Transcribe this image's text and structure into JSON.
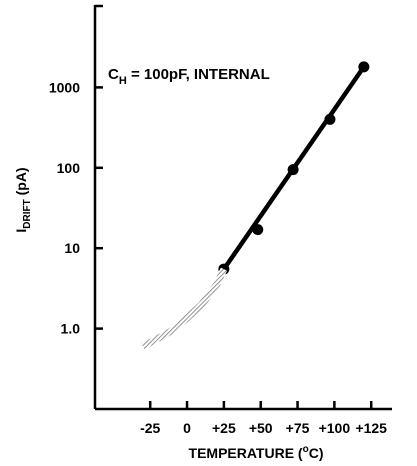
{
  "chart_data": {
    "type": "line",
    "ylabel_main": "I",
    "ylabel_sub": "DRIFT",
    "ylabel_unit": " (pA)",
    "xlabel_main": "TEMPERATURE (",
    "xlabel_sup": "o",
    "xlabel_end": "C)",
    "annotation_main": "C",
    "annotation_sub": "H",
    "annotation_rest": " = 100pF, INTERNAL",
    "y_scale": "log",
    "ylim": [
      0.1,
      10000
    ],
    "xlim": [
      -55,
      133
    ],
    "x_ticks": [
      {
        "value": -25,
        "label": "-25"
      },
      {
        "value": 0,
        "label": "0"
      },
      {
        "value": 25,
        "label": "+25"
      },
      {
        "value": 50,
        "label": "+50"
      },
      {
        "value": 75,
        "label": "+75"
      },
      {
        "value": 100,
        "label": "+100"
      },
      {
        "value": 125,
        "label": "+125"
      }
    ],
    "y_ticks": [
      {
        "value": 1,
        "label": "1.0"
      },
      {
        "value": 10,
        "label": "10"
      },
      {
        "value": 100,
        "label": "100"
      },
      {
        "value": 1000,
        "label": "1000"
      }
    ],
    "series": [
      {
        "style": "solid",
        "color": "#000000",
        "x": [
          25,
          120
        ],
        "y": [
          5.5,
          1800
        ]
      },
      {
        "style": "points",
        "color": "#000000",
        "x": [
          25,
          48,
          72,
          97,
          120
        ],
        "y": [
          5.5,
          17,
          95,
          400,
          1800
        ]
      },
      {
        "style": "hatched",
        "color": "#888888",
        "x": [
          -30,
          -20,
          -10,
          0,
          10,
          20,
          25
        ],
        "y": [
          0.6,
          0.75,
          0.95,
          1.35,
          2.0,
          3.5,
          5.5
        ]
      }
    ],
    "grid": false
  }
}
